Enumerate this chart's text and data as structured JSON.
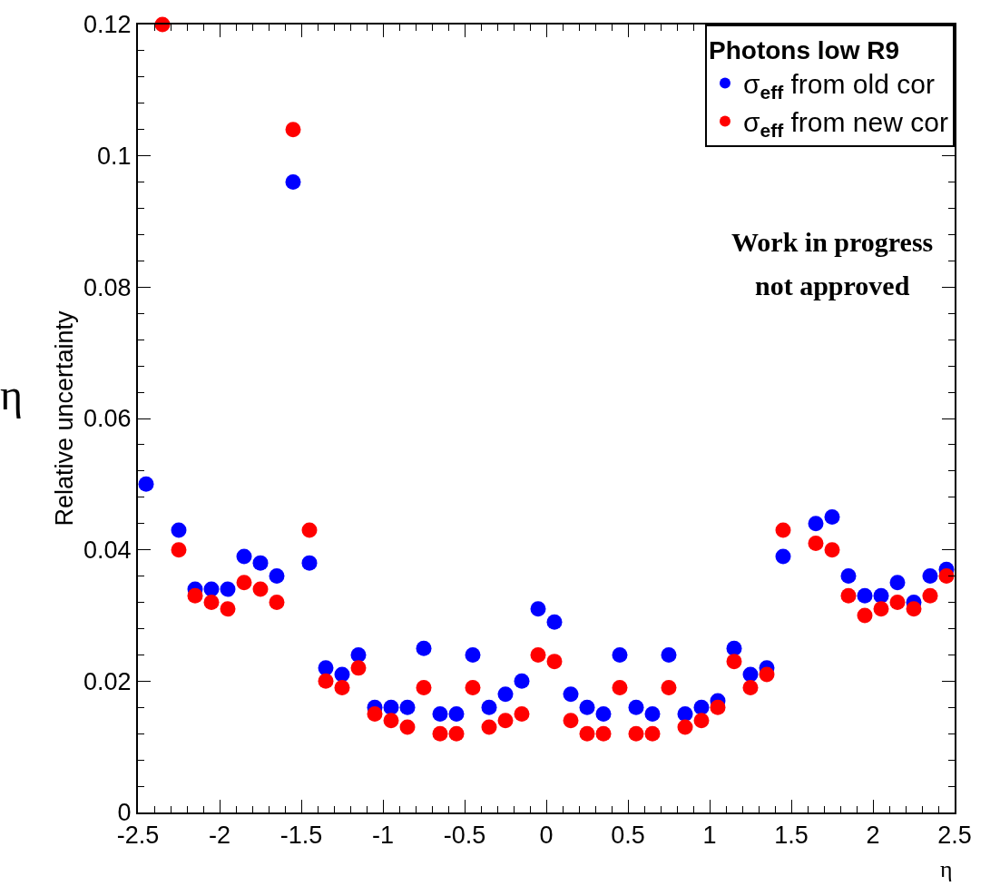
{
  "chart_data": {
    "type": "scatter",
    "x": [
      -2.45,
      -2.35,
      -2.25,
      -2.15,
      -2.05,
      -1.95,
      -1.85,
      -1.75,
      -1.65,
      -1.55,
      -1.45,
      -1.35,
      -1.25,
      -1.15,
      -1.05,
      -0.95,
      -0.85,
      -0.75,
      -0.65,
      -0.55,
      -0.45,
      -0.35,
      -0.25,
      -0.15,
      -0.05,
      0.05,
      0.15,
      0.25,
      0.35,
      0.45,
      0.55,
      0.65,
      0.75,
      0.85,
      0.95,
      1.05,
      1.15,
      1.25,
      1.35,
      1.45,
      1.55,
      1.65,
      1.75,
      1.85,
      1.95,
      2.05,
      2.15,
      2.25,
      2.35,
      2.45
    ],
    "series": [
      {
        "name": "σ$_{eff}$ from old cor",
        "color": "#0000ff",
        "values": [
          0.05,
          null,
          0.043,
          0.034,
          0.034,
          0.034,
          0.039,
          0.038,
          0.036,
          0.096,
          0.038,
          0.022,
          0.021,
          0.024,
          0.016,
          0.016,
          0.016,
          0.025,
          0.015,
          0.015,
          0.024,
          0.016,
          0.018,
          0.02,
          0.031,
          0.029,
          0.018,
          0.016,
          0.015,
          0.024,
          0.016,
          0.015,
          0.024,
          0.015,
          0.016,
          0.017,
          0.025,
          0.021,
          0.022,
          0.039,
          null,
          0.044,
          0.045,
          0.036,
          0.033,
          0.033,
          0.035,
          0.032,
          0.036,
          0.037
        ]
      },
      {
        "name": "σ$_{eff}$ from new cor",
        "color": "#ff0000",
        "values": [
          null,
          0.12,
          0.04,
          0.033,
          0.032,
          0.031,
          0.035,
          0.034,
          0.032,
          0.104,
          0.043,
          0.02,
          0.019,
          0.022,
          0.015,
          0.014,
          0.013,
          0.019,
          0.012,
          0.012,
          0.019,
          0.013,
          0.014,
          0.015,
          0.024,
          0.023,
          0.014,
          0.012,
          0.012,
          0.019,
          0.012,
          0.012,
          0.019,
          0.013,
          0.014,
          0.016,
          0.023,
          0.019,
          0.021,
          0.043,
          null,
          0.041,
          0.04,
          0.033,
          0.03,
          0.031,
          0.032,
          0.031,
          0.033,
          0.036
        ]
      }
    ],
    "xlabel": "η",
    "ylabel": "Relative uncertainty",
    "legend_title": "Photons low R9",
    "annotations": [
      "Work in progress",
      "not approved",
      "η"
    ],
    "xlim": [
      -2.5,
      2.5
    ],
    "xticks": [
      -2.5,
      -2,
      -1.5,
      -1,
      -0.5,
      0,
      0.5,
      1,
      1.5,
      2,
      2.5
    ],
    "ylim": [
      0,
      0.12
    ],
    "yticks": [
      0,
      0.02,
      0.04,
      0.06,
      0.08,
      0.1,
      0.12
    ],
    "legend": "top right",
    "marker": "circle"
  }
}
